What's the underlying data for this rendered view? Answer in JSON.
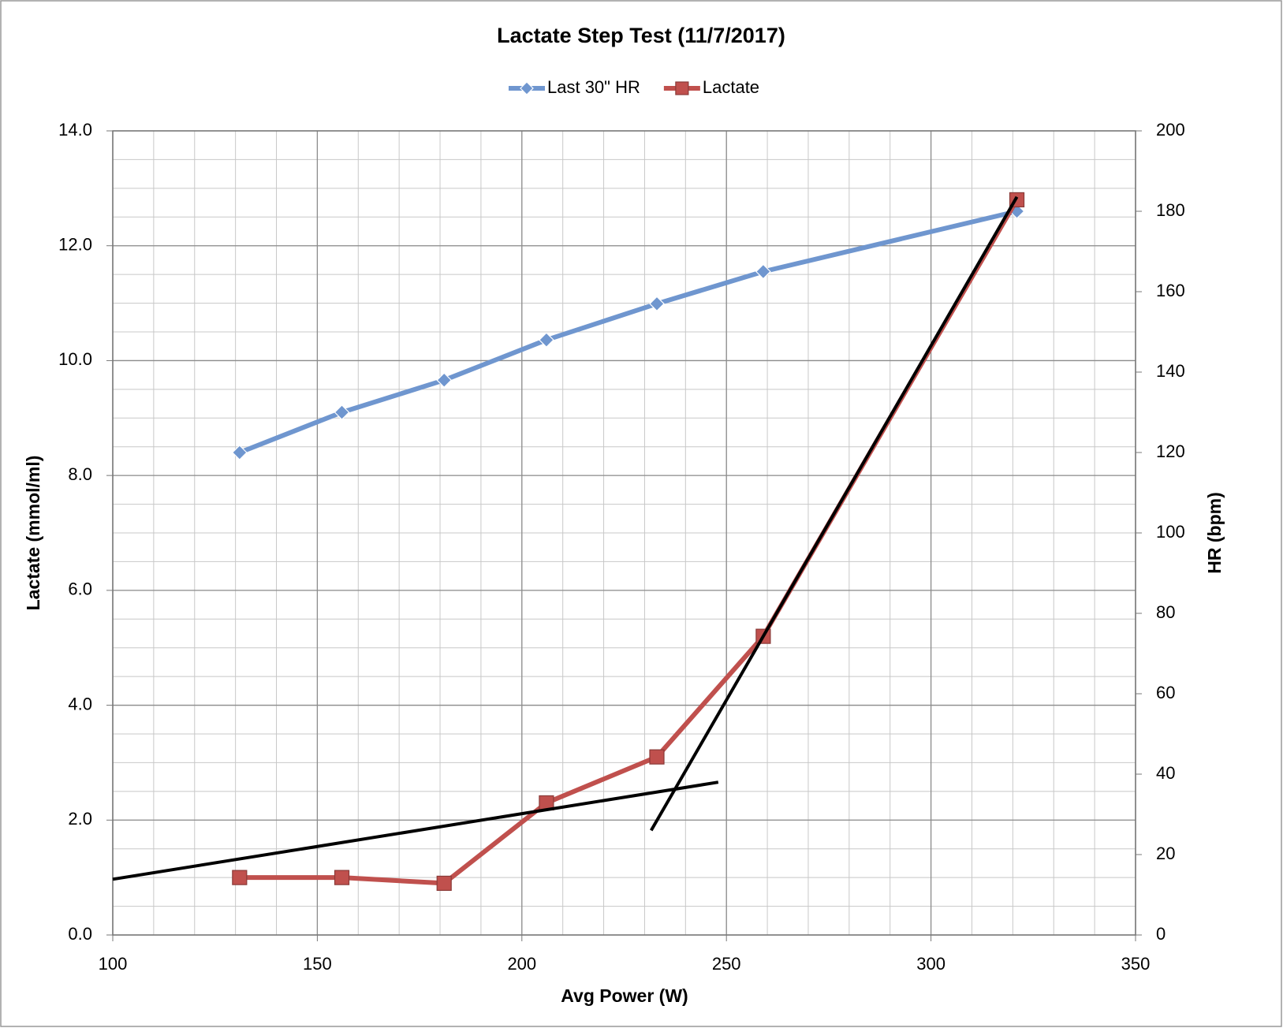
{
  "chart_data": {
    "type": "line",
    "title": "Lactate Step Test (11/7/2017)",
    "x_label": "Avg Power (W)",
    "y_label": "Lactate (mmol/ml)",
    "y2_label": "HR (bpm)",
    "x": [
      131,
      156,
      181,
      206,
      233,
      259,
      321
    ],
    "series": [
      {
        "name": "Last 30\" HR",
        "color": "#6f96cf",
        "marker": "diamond",
        "axis": "y2",
        "values": [
          120,
          130,
          138,
          148,
          157,
          165,
          180
        ]
      },
      {
        "name": "Lactate",
        "color": "#c0504d",
        "marker": "square",
        "values": [
          1.0,
          1.0,
          0.9,
          2.3,
          3.1,
          5.2,
          12.8
        ]
      }
    ],
    "trendlines": [
      {
        "color": "#000000",
        "x": [
          100,
          248
        ],
        "values": [
          0.97,
          2.66
        ]
      },
      {
        "color": "#000000",
        "x": [
          231.6,
          321
        ],
        "values": [
          1.82,
          12.85
        ]
      }
    ],
    "xlim": [
      100,
      350
    ],
    "xticks": [
      100,
      150,
      200,
      250,
      300,
      350
    ],
    "ylim": [
      0,
      14
    ],
    "yticks": [
      {
        "value": 0,
        "label": "0.0"
      },
      {
        "value": 2,
        "label": "2.0"
      },
      {
        "value": 4,
        "label": "4.0"
      },
      {
        "value": 6,
        "label": "6.0"
      },
      {
        "value": 8,
        "label": "8.0"
      },
      {
        "value": 10,
        "label": "10.0"
      },
      {
        "value": 12,
        "label": "12.0"
      },
      {
        "value": 14,
        "label": "14.0"
      }
    ],
    "y2lim": [
      0,
      200
    ],
    "y2ticks": [
      0,
      20,
      40,
      60,
      80,
      100,
      120,
      140,
      160,
      180,
      200
    ],
    "grid": true,
    "minor_step_x": 10,
    "minor_step_y": 0.5,
    "legend": "top"
  }
}
